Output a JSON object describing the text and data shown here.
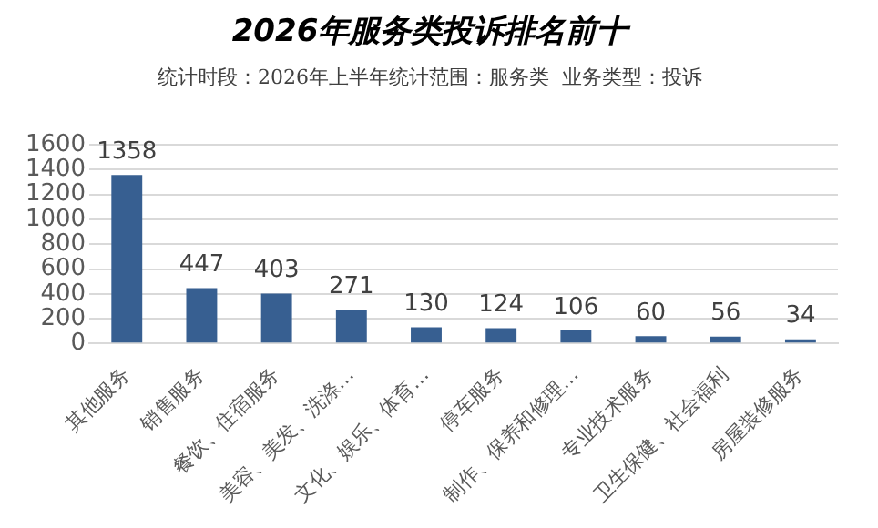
{
  "chart_data": {
    "type": "bar",
    "title": "2026年服务类投诉排名前十",
    "subtitle": "统计时段：2026年上半年统计范围：服务类  业务类型：投诉",
    "categories": [
      "其他服务",
      "销售服务",
      "餐饮、住宿服务",
      "美容、美发、洗涤…",
      "文化、娱乐、体育…",
      "停车服务",
      "制作、保养和修理…",
      "专业技术服务",
      "卫生保健、社会福利",
      "房屋装修服务"
    ],
    "values": [
      1358,
      447,
      403,
      271,
      130,
      124,
      106,
      60,
      56,
      34
    ],
    "color": "#375f91",
    "ylim": [
      0,
      1600
    ],
    "yticks": [
      0,
      200,
      400,
      600,
      800,
      1000,
      1200,
      1400,
      1600
    ],
    "grid": "y",
    "data_labels": true
  }
}
